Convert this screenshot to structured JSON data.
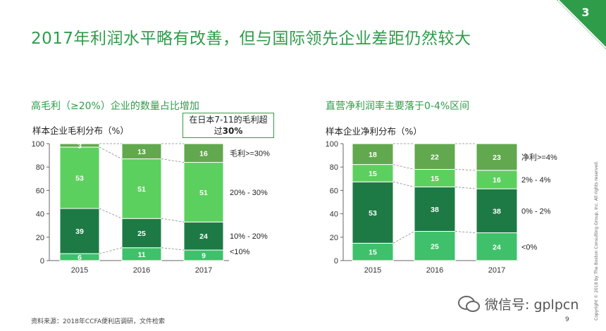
{
  "title": "2017年利润水平略有改善，但与国际领先企业差距仍然较大",
  "page_badge": "3",
  "page_number": "9",
  "source": "资料来源：2018年CCFA便利店调研，文件检索",
  "copyright": "Copyright © 2018 by The Boston Consulting Group, Inc. All rights reserved.",
  "watermark": "微信号: gplpcn",
  "colors": {
    "accent": "#2f9c4a",
    "seg_dark": "#1e7a45",
    "seg_light": "#5cd05e",
    "seg_mid": "#62a84e",
    "seg_bright": "#3ec16a"
  },
  "left_panel": {
    "subtitle": "高毛利（≥20%）企业的数量占比增加",
    "chart_title": "样本企业毛利分布（%）",
    "callout_line1": "在日本7-11的毛利超",
    "callout_line2_prefix": "过",
    "callout_line2_bold": "30%"
  },
  "right_panel": {
    "subtitle": "直营净利润率主要落于0-4%区间",
    "chart_title": "样本企业净利分布（%）"
  },
  "chart_data": [
    {
      "type": "bar",
      "stacked": true,
      "title": "样本企业毛利分布（%）",
      "categories": [
        "2015",
        "2016",
        "2017"
      ],
      "ylim": [
        0,
        100
      ],
      "yticks": [
        0,
        20,
        40,
        60,
        80,
        100
      ],
      "series": [
        {
          "name": "<10%",
          "values": [
            6,
            11,
            9
          ],
          "color": "#3ec16a"
        },
        {
          "name": "10% - 20%",
          "values": [
            39,
            25,
            24
          ],
          "color": "#1e7a45"
        },
        {
          "name": "20% - 30%",
          "values": [
            53,
            51,
            51
          ],
          "color": "#5cd05e"
        },
        {
          "name": "毛利>=30%",
          "values": [
            3,
            13,
            16
          ],
          "color": "#62a84e"
        }
      ]
    },
    {
      "type": "bar",
      "stacked": true,
      "title": "样本企业净利分布（%）",
      "categories": [
        "2015",
        "2016",
        "2017"
      ],
      "ylim": [
        0,
        100
      ],
      "yticks": [
        0,
        20,
        40,
        60,
        80,
        100
      ],
      "series": [
        {
          "name": "<0%",
          "values": [
            15,
            25,
            24
          ],
          "color": "#3ec16a"
        },
        {
          "name": "0% - 2%",
          "values": [
            53,
            38,
            38
          ],
          "color": "#1e7a45"
        },
        {
          "name": "2% - 4%",
          "values": [
            15,
            15,
            16
          ],
          "color": "#5cd05e"
        },
        {
          "name": "净利>=4%",
          "values": [
            18,
            22,
            23
          ],
          "color": "#62a84e"
        }
      ]
    }
  ]
}
